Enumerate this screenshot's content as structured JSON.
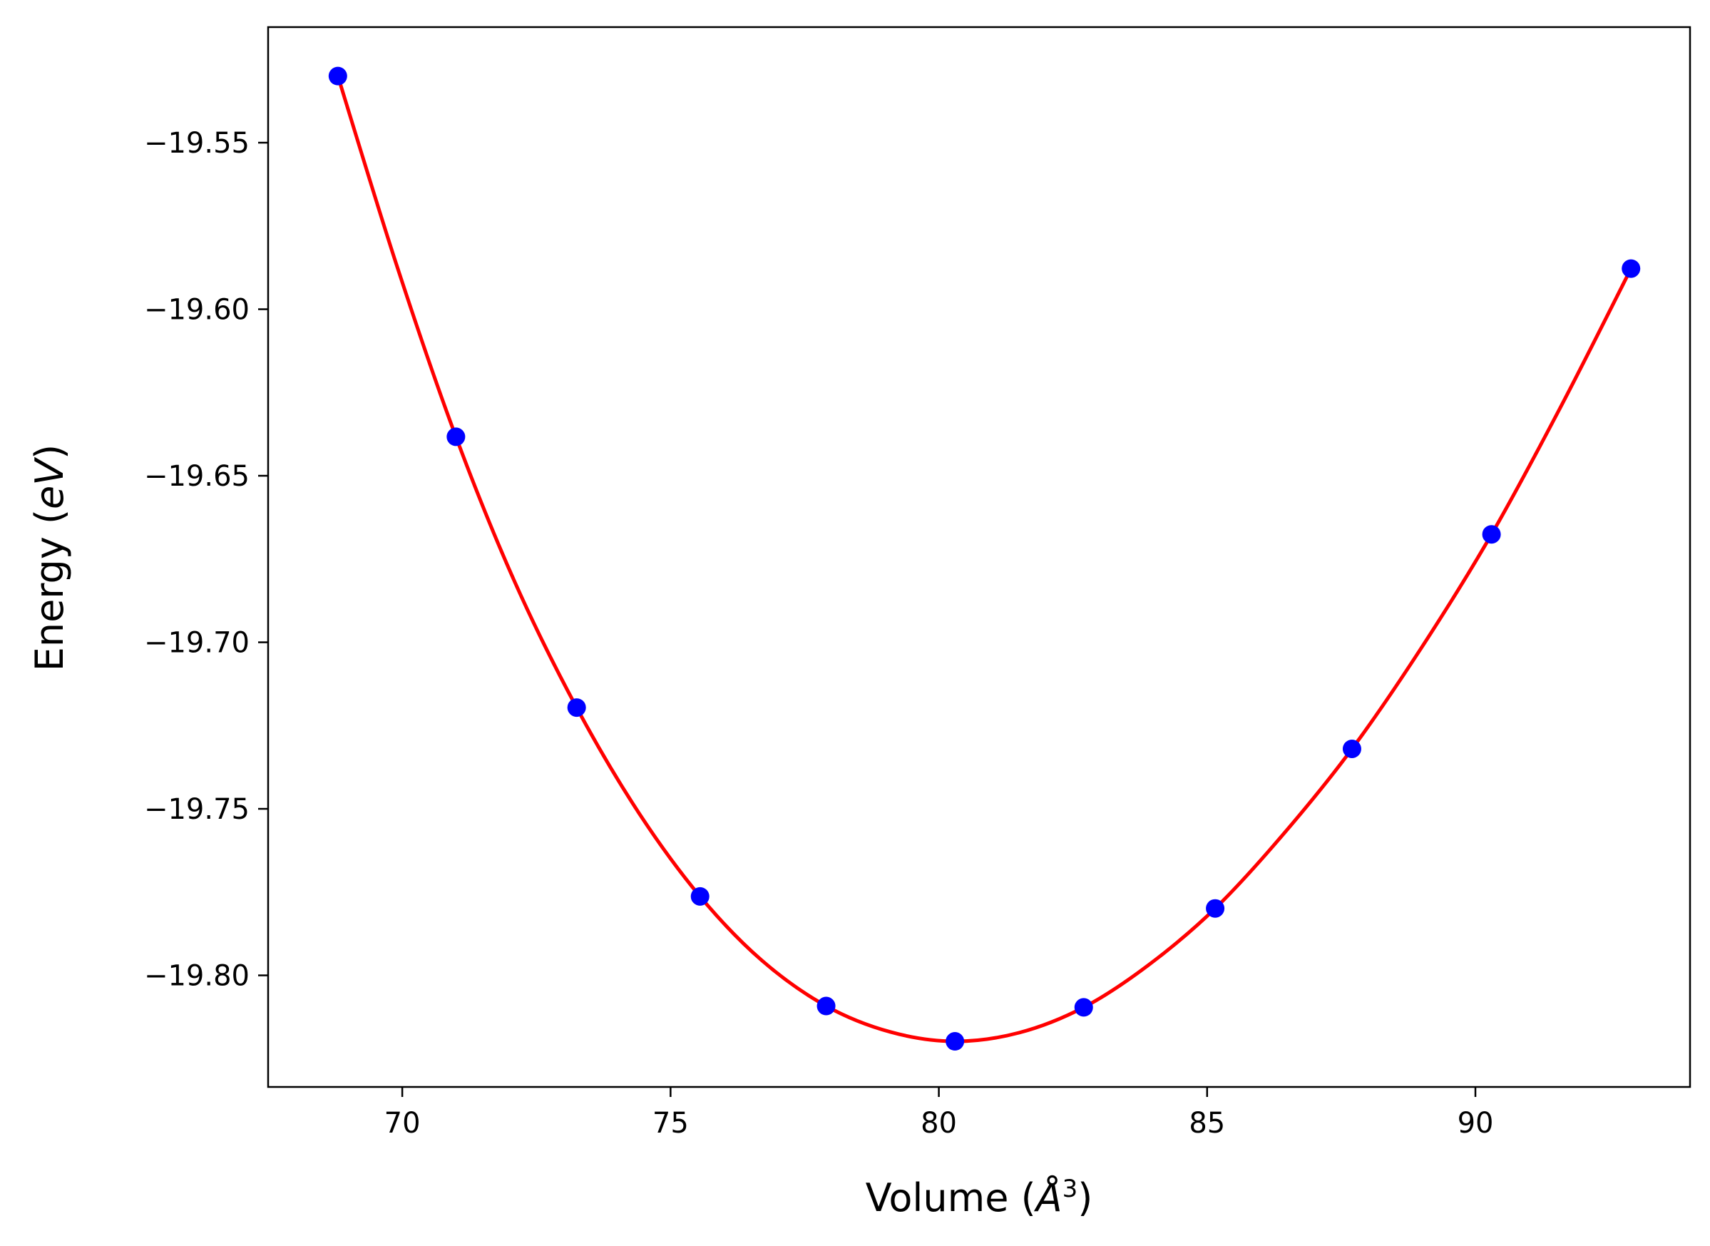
{
  "chart_data": {
    "type": "line",
    "title": "",
    "xlabel": "Volume (",
    "xlabel_symbol": "Å",
    "xlabel_exponent": "3",
    "xlabel_suffix": ")",
    "ylabel": "Energy (",
    "ylabel_symbol": "eV",
    "ylabel_suffix": ")",
    "xlim": [
      67.5,
      94.0
    ],
    "ylim": [
      -19.8335,
      -19.5153
    ],
    "xticks": [
      70,
      75,
      80,
      85,
      90
    ],
    "xtick_labels": [
      "70",
      "75",
      "80",
      "85",
      "90"
    ],
    "yticks": [
      -19.55,
      -19.6,
      -19.65,
      -19.7,
      -19.75,
      -19.8
    ],
    "ytick_labels": [
      "−19.55",
      "−19.60",
      "−19.65",
      "−19.70",
      "−19.75",
      "−19.80"
    ],
    "grid": false,
    "series": [
      {
        "kind": "scatter",
        "color": "#0000ff",
        "x": [
          68.8,
          71.0,
          73.25,
          75.55,
          77.9,
          80.3,
          82.7,
          85.15,
          87.7,
          90.3,
          92.9
        ],
        "y": [
          -19.53,
          -19.6383,
          -19.7196,
          -19.7763,
          -19.8092,
          -19.8198,
          -19.8096,
          -19.7799,
          -19.732,
          -19.6676,
          -19.5878
        ]
      },
      {
        "kind": "line",
        "color": "#ff0000",
        "x": [
          68.8,
          69.9,
          71.0,
          72.1,
          73.25,
          74.4,
          75.55,
          76.7,
          77.9,
          79.1,
          80.3,
          81.5,
          82.7,
          83.9,
          85.15,
          86.4,
          87.7,
          89.0,
          90.3,
          91.6,
          92.9
        ],
        "y": [
          -19.53,
          -19.587,
          -19.6383,
          -19.682,
          -19.7196,
          -19.751,
          -19.7763,
          -19.7955,
          -19.8092,
          -19.817,
          -19.8198,
          -19.8172,
          -19.8096,
          -19.797,
          -19.7799,
          -19.758,
          -19.732,
          -19.7015,
          -19.6676,
          -19.629,
          -19.5878
        ]
      }
    ]
  }
}
